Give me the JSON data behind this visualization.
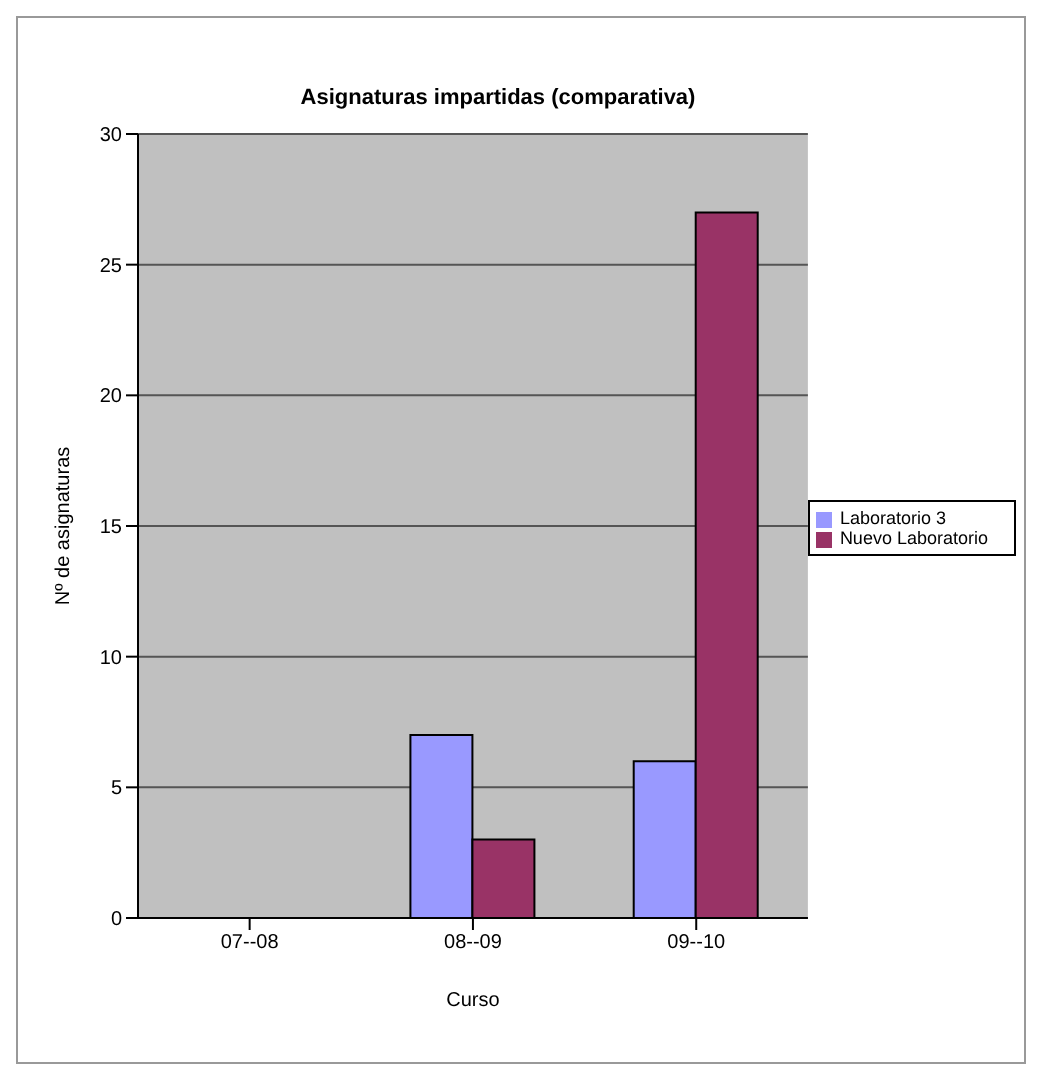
{
  "chart_data": {
    "type": "bar",
    "title": "Asignaturas impartidas (comparativa)",
    "xlabel": "Curso",
    "ylabel": "Nº de asignaturas",
    "categories": [
      "07--08",
      "08--09",
      "09--10"
    ],
    "series": [
      {
        "name": "Laboratorio 3",
        "color": "#9999ff",
        "values": [
          0,
          7,
          6
        ]
      },
      {
        "name": "Nuevo Laboratorio",
        "color": "#993366",
        "values": [
          0,
          3,
          27
        ]
      }
    ],
    "ylim": [
      0,
      30
    ],
    "yticks": [
      0,
      5,
      10,
      15,
      20,
      25,
      30
    ],
    "grid": "y",
    "legend": "right"
  }
}
